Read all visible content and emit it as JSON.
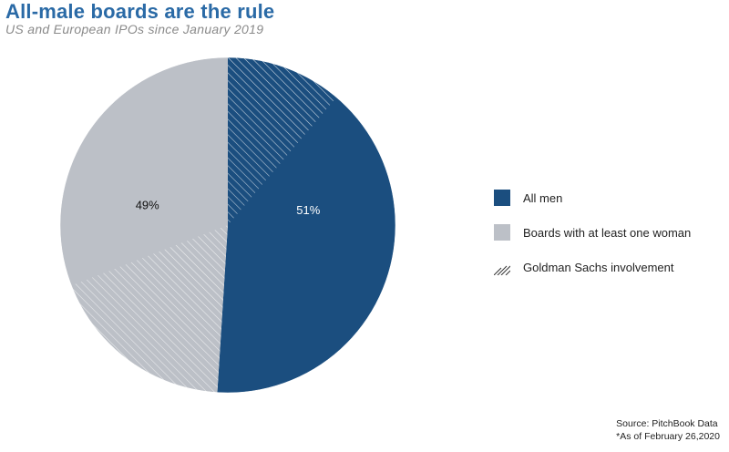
{
  "title": "All-male boards are the rule",
  "subtitle": "US and European IPOs since January 2019",
  "colors": {
    "all_men": "#1b4e7f",
    "women": "#bcc0c7",
    "title": "#2a6aa6",
    "hatch": "#ffffff"
  },
  "legend": {
    "items": [
      {
        "label": "All men",
        "swatch": "solid-dark-blue"
      },
      {
        "label": "Boards with at least one woman",
        "swatch": "solid-gray"
      },
      {
        "label": "Goldman Sachs involvement",
        "swatch": "hatched"
      }
    ]
  },
  "chart_data": {
    "type": "pie",
    "title": "All-male boards are the rule",
    "subtitle": "US and European IPOs since January 2019",
    "slices": [
      {
        "label": "All men",
        "value": 51,
        "display": "51%",
        "color": "#1b4e7f",
        "goldman_sachs_share": 22
      },
      {
        "label": "Boards with at least one woman",
        "value": 49,
        "display": "49%",
        "color": "#bcc0c7",
        "goldman_sachs_share": 37
      }
    ],
    "legend_position": "right"
  },
  "footer": {
    "source": "Source: PitchBook Data",
    "note": "*As of February 26,2020"
  }
}
